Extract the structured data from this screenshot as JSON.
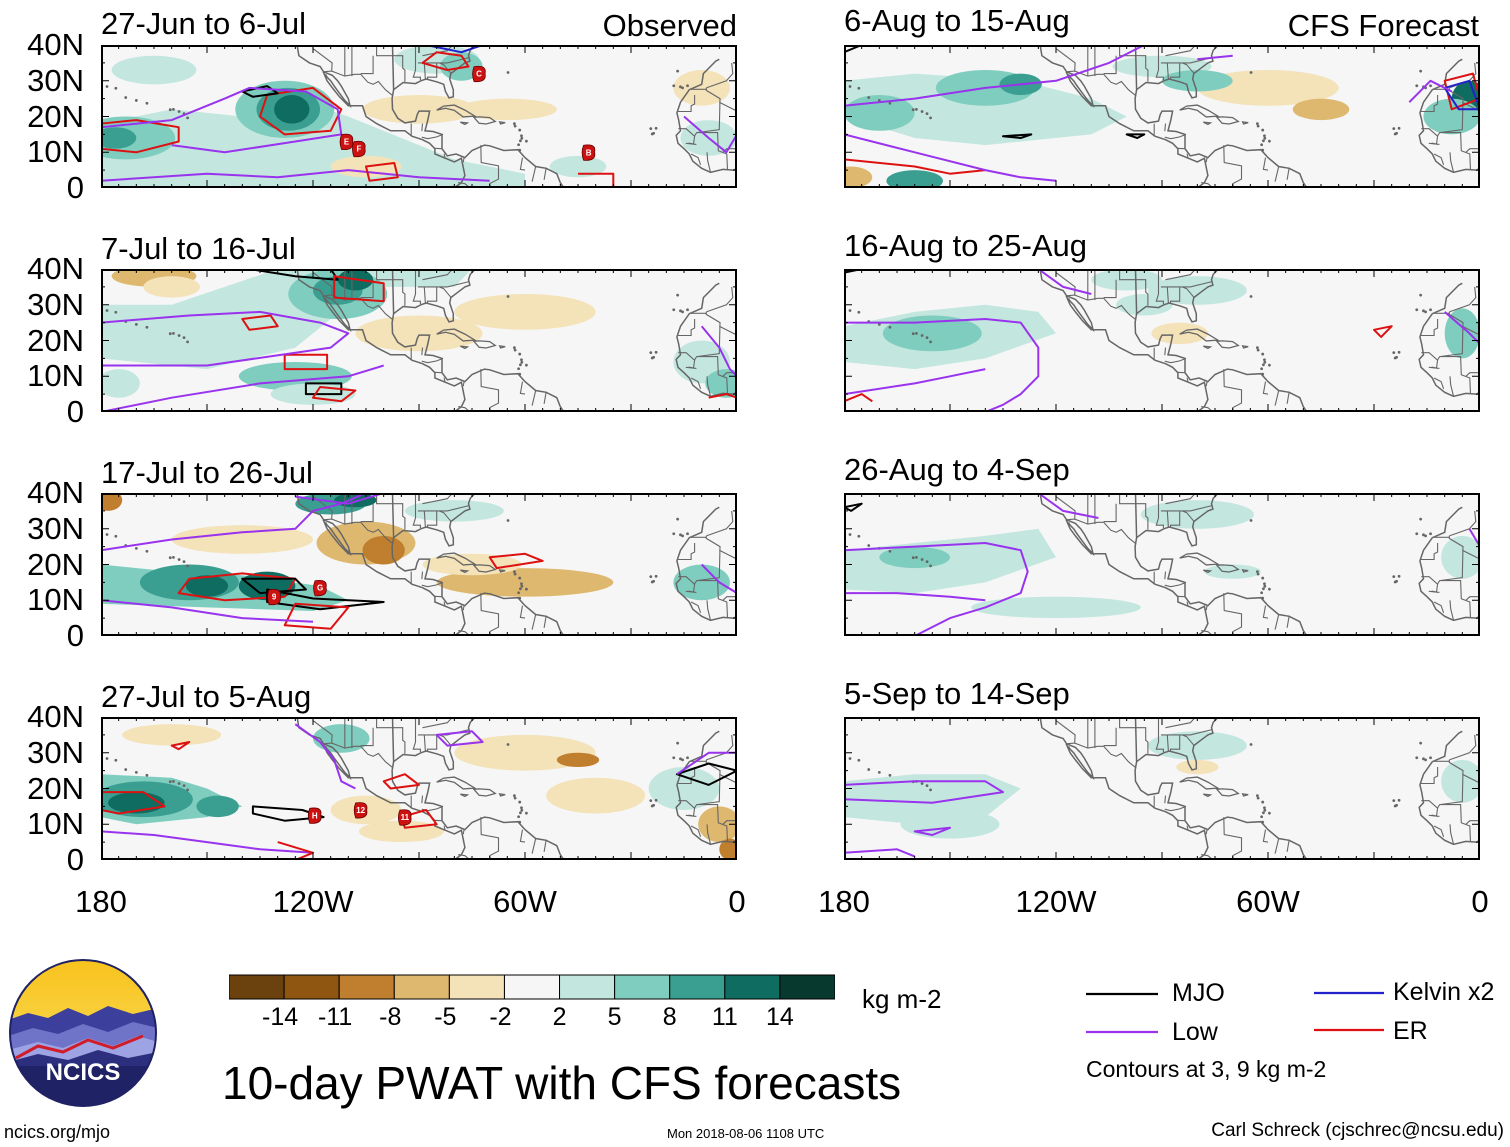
{
  "figure_title": "10-day PWAT with CFS forecasts",
  "tags": {
    "observed": "Observed",
    "forecast": "CFS Forecast"
  },
  "panels": [
    {
      "title": "27-Jun to 6-Jul",
      "group": "observed"
    },
    {
      "title": "7-Jul to 16-Jul",
      "group": "observed"
    },
    {
      "title": "17-Jul to 26-Jul",
      "group": "observed"
    },
    {
      "title": "27-Jul to 5-Aug",
      "group": "observed"
    },
    {
      "title": "6-Aug to 15-Aug",
      "group": "forecast"
    },
    {
      "title": "16-Aug to 25-Aug",
      "group": "forecast"
    },
    {
      "title": "26-Aug to 4-Sep",
      "group": "forecast"
    },
    {
      "title": "5-Sep to 14-Sep",
      "group": "forecast"
    }
  ],
  "axes": {
    "lat_labels": [
      "40N",
      "30N",
      "20N",
      "10N",
      "0"
    ],
    "lon_labels": [
      "180",
      "120W",
      "60W",
      "0"
    ]
  },
  "colorbar": {
    "labels": [
      "-14",
      "-11",
      "-8",
      "-5",
      "-2",
      "2",
      "5",
      "8",
      "11",
      "14"
    ],
    "colors": [
      "#6b420d",
      "#8f5612",
      "#c07f2e",
      "#deb86f",
      "#f4e2b8",
      "#f6f6f6",
      "#c3e7df",
      "#7fcdbf",
      "#3a9f91",
      "#0f6c61",
      "#07392f"
    ],
    "units": "kg m-2"
  },
  "legend": {
    "items": [
      {
        "label": "MJO",
        "color": "#000000"
      },
      {
        "label": "Kelvin x2",
        "color": "#2222cc"
      },
      {
        "label": "Low",
        "color": "#9933ee"
      },
      {
        "label": "ER",
        "color": "#dd1111"
      }
    ],
    "note": "Contours at 3, 9 kg m-2"
  },
  "storm_markers": [
    {
      "panel": 0,
      "labels": [
        "E",
        "F",
        "C",
        "B"
      ]
    },
    {
      "panel": 2,
      "labels": [
        "9",
        "G"
      ]
    },
    {
      "panel": 3,
      "labels": [
        "H",
        "12",
        "11"
      ]
    }
  ],
  "logo": {
    "text": "NCICS"
  },
  "footer": {
    "left": "ncics.org/mjo",
    "center": "Mon 2018-08-06 1108 UTC",
    "right": "Carl Schreck (cjschrec@ncsu.edu)"
  },
  "colors": {
    "coast": "#666666",
    "frame": "#000000"
  }
}
